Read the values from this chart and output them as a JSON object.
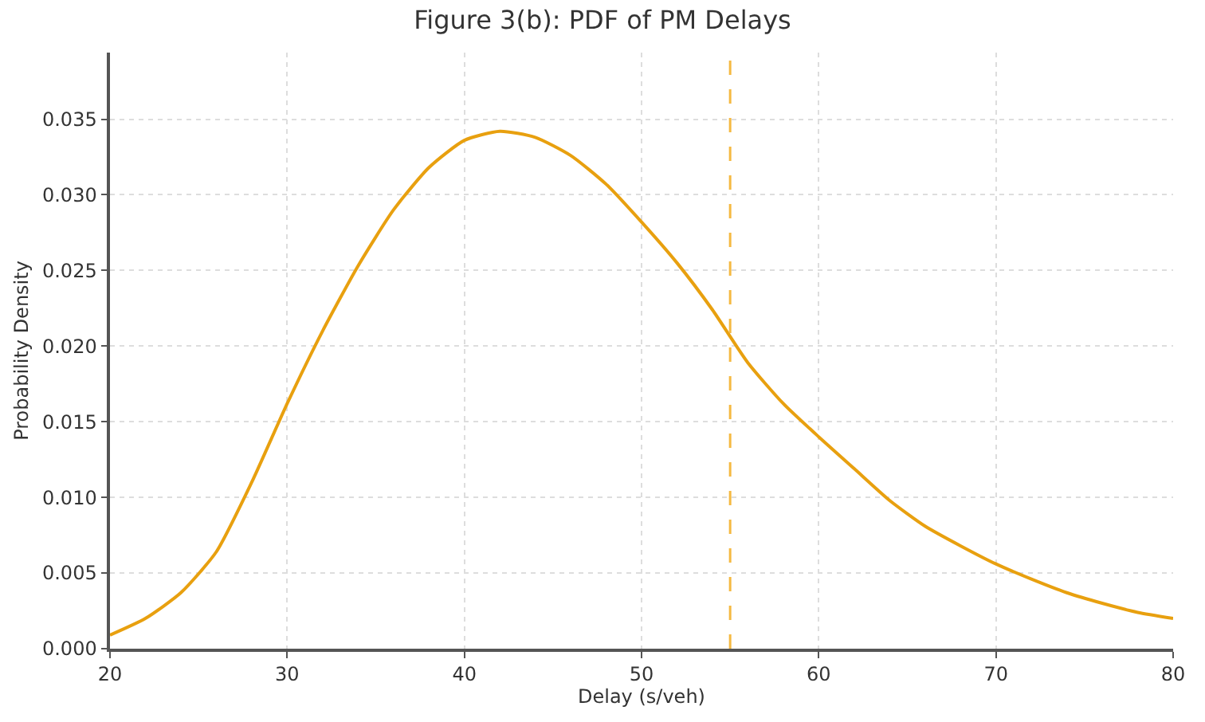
{
  "chart_data": {
    "type": "line",
    "title": "Figure 3(b): PDF of PM Delays",
    "xlabel": "Delay (s/veh)",
    "ylabel": "Probability Density",
    "x": [
      20,
      22,
      24,
      26,
      28,
      30,
      32,
      34,
      36,
      38,
      40,
      42,
      44,
      46,
      48,
      50,
      52,
      54,
      56,
      58,
      60,
      62,
      64,
      66,
      68,
      70,
      72,
      74,
      76,
      78,
      80
    ],
    "series": [
      {
        "color": "#e8a00f",
        "values": [
          0.0009,
          0.002,
          0.0037,
          0.0064,
          0.011,
          0.0162,
          0.021,
          0.0253,
          0.029,
          0.0318,
          0.0336,
          0.0342,
          0.0338,
          0.0326,
          0.0307,
          0.0282,
          0.0255,
          0.0224,
          0.0189,
          0.0162,
          0.014,
          0.0119,
          0.0098,
          0.0081,
          0.0068,
          0.0056,
          0.0046,
          0.0037,
          0.003,
          0.0024,
          0.002
        ]
      }
    ],
    "xlim": [
      20,
      80
    ],
    "xticks": [
      20,
      30,
      40,
      50,
      60,
      70,
      80
    ],
    "ylim": [
      0,
      0.0394
    ],
    "yticks": [
      {
        "value": 0,
        "label": "0.000"
      },
      {
        "value": 0.005,
        "label": "0.005"
      },
      {
        "value": 0.01,
        "label": "0.010"
      },
      {
        "value": 0.015,
        "label": "0.015"
      },
      {
        "value": 0.02,
        "label": "0.020"
      },
      {
        "value": 0.025,
        "label": "0.025"
      },
      {
        "value": 0.03,
        "label": "0.030"
      },
      {
        "value": 0.035,
        "label": "0.035"
      }
    ],
    "ref_lines": [
      {
        "axis": "x",
        "value": 55,
        "color": "#f5b942",
        "line_style": "dashed"
      }
    ],
    "grid": true,
    "line_style": "solid",
    "marker": "none"
  }
}
